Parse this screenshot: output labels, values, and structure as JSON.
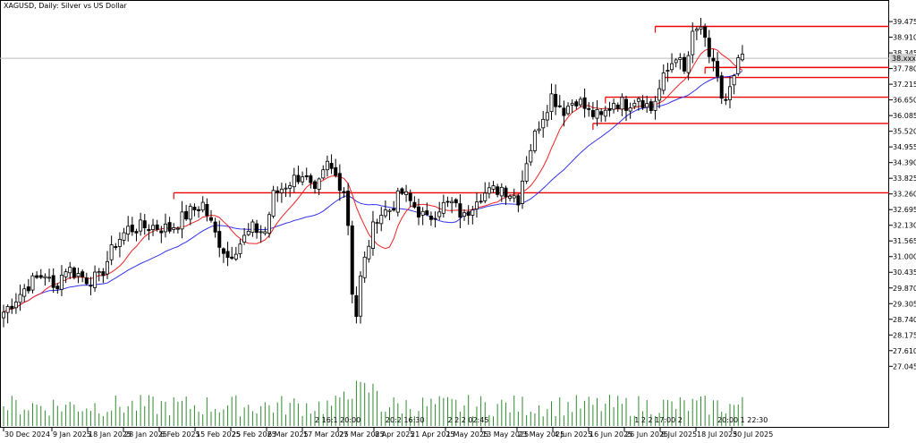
{
  "chart_data": {
    "type": "candlestick",
    "title": "XAGUSD, Daily:  Silver vs US Dollar",
    "current_price_label": "38.xxx",
    "ylim": [
      26.7,
      39.8
    ],
    "y_ticks": [
      "39.475",
      "38.910",
      "38.345",
      "37.780",
      "37.215",
      "36.650",
      "36.085",
      "35.520",
      "34.955",
      "34.390",
      "33.825",
      "33.260",
      "32.695",
      "32.130",
      "31.565",
      "31.000",
      "30.435",
      "29.870",
      "29.305",
      "28.740",
      "28.175",
      "27.610",
      "27.045"
    ],
    "x_ticks": [
      "30 Dec 2024",
      "9 Jan 2025",
      "18 Jan 2025",
      "28 Jan 2025",
      "6 Feb 2025",
      "15 Feb 2025",
      "25 Feb 2025",
      "6 Mar 2025",
      "17 Mar 2025",
      "27 Mar 2025",
      "8 Apr 2025",
      "21 Apr 2025",
      "1 May 2025",
      "13 May 2025",
      "23 May 2025",
      "4 Jun 2025",
      "16 Jun 2025",
      "26 Jun 2025",
      "8 Jul 2025",
      "18 Jul 2025",
      "30 Jul 2025"
    ],
    "horizontal_levels": [
      {
        "price": 39.3,
        "from_bar": 157
      },
      {
        "price": 37.82,
        "from_bar": 169
      },
      {
        "price": 37.46,
        "from_bar": 159
      },
      {
        "price": 36.75,
        "from_bar": 145
      },
      {
        "price": 35.8,
        "from_bar": 142
      },
      {
        "price": 33.3,
        "from_bar": 41
      }
    ],
    "anchors": [
      [
        0,
        29.0
      ],
      [
        3,
        29.5
      ],
      [
        6,
        30.0
      ],
      [
        10,
        30.4
      ],
      [
        12,
        29.8
      ],
      [
        15,
        30.6
      ],
      [
        20,
        30.2
      ],
      [
        23,
        30.2
      ],
      [
        27,
        31.5
      ],
      [
        30,
        32.0
      ],
      [
        36,
        32.1
      ],
      [
        40,
        32.0
      ],
      [
        44,
        32.5
      ],
      [
        48,
        32.9
      ],
      [
        51,
        31.8
      ],
      [
        54,
        31.0
      ],
      [
        57,
        31.5
      ],
      [
        60,
        32.0
      ],
      [
        63,
        31.9
      ],
      [
        65,
        33.2
      ],
      [
        68,
        33.6
      ],
      [
        72,
        34.0
      ],
      [
        75,
        33.2
      ],
      [
        78,
        34.3
      ],
      [
        80,
        33.9
      ],
      [
        82,
        33.4
      ],
      [
        83,
        32.2
      ],
      [
        84,
        29.8
      ],
      [
        85,
        28.9
      ],
      [
        86,
        30.2
      ],
      [
        88,
        31.5
      ],
      [
        90,
        32.5
      ],
      [
        93,
        32.7
      ],
      [
        96,
        33.3
      ],
      [
        99,
        32.8
      ],
      [
        102,
        32.3
      ],
      [
        105,
        32.8
      ],
      [
        108,
        32.9
      ],
      [
        111,
        32.4
      ],
      [
        114,
        33.2
      ],
      [
        117,
        33.3
      ],
      [
        120,
        33.5
      ],
      [
        124,
        33.1
      ],
      [
        126,
        34.5
      ],
      [
        129,
        35.8
      ],
      [
        132,
        36.8
      ],
      [
        135,
        36.3
      ],
      [
        138,
        36.7
      ],
      [
        141,
        36.2
      ],
      [
        144,
        36.0
      ],
      [
        147,
        36.6
      ],
      [
        150,
        36.5
      ],
      [
        153,
        36.8
      ],
      [
        156,
        36.3
      ],
      [
        159,
        37.4
      ],
      [
        162,
        38.3
      ],
      [
        164,
        37.6
      ],
      [
        166,
        38.9
      ],
      [
        168,
        39.3
      ],
      [
        170,
        38.0
      ],
      [
        171,
        38.1
      ],
      [
        172,
        37.5
      ],
      [
        173,
        36.6
      ],
      [
        174,
        36.5
      ],
      [
        175,
        36.9
      ],
      [
        176,
        37.5
      ],
      [
        177,
        37.9
      ],
      [
        178,
        38.3
      ]
    ],
    "volume_levels": [
      0.15,
      0.35
    ],
    "volume_labels": [
      {
        "bar": 75,
        "text": "2 16:1 20:00"
      },
      {
        "bar": 92,
        "text": "20:2 16:30"
      },
      {
        "bar": 107,
        "text": "2 2 2 02:45"
      },
      {
        "bar": 152,
        "text": "1 2 2 17:00 2"
      },
      {
        "bar": 172,
        "text": "20:00 1 22:30"
      }
    ]
  }
}
